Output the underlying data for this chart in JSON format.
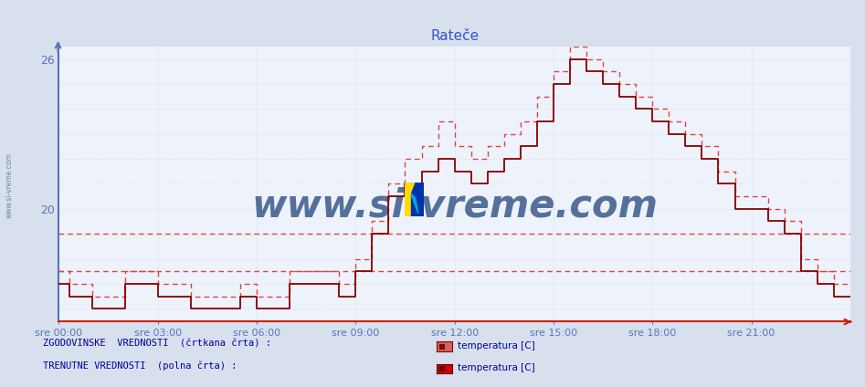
{
  "title": "Rateče",
  "title_color": "#3355cc",
  "fig_bg": "#d8e0ee",
  "plot_bg": "#eef2fa",
  "grid_color": "#c8d4e8",
  "grid_dashed_color": "#dd3333",
  "axis_color_y": "#5577bb",
  "axis_color_x": "#cc2200",
  "text_color": "#000099",
  "watermark_text": "www.si-vreme.com",
  "watermark_color": "#3a5a8a",
  "side_text": "www.si-vreme.com",
  "side_text_color": "#6688aa",
  "ylim": [
    15.5,
    26.5
  ],
  "ytick_positions": [
    20,
    26
  ],
  "ytick_labels": [
    "20",
    "26"
  ],
  "xlim_pts": [
    0,
    288
  ],
  "xtick_positions": [
    0,
    36,
    72,
    108,
    144,
    180,
    216,
    252
  ],
  "xtick_labels": [
    "sre 00:00",
    "sre 03:00",
    "sre 06:00",
    "sre 09:00",
    "sre 12:00",
    "sre 15:00",
    "sre 18:00",
    "sre 21:00"
  ],
  "hist_avg_y1": 19.0,
  "hist_avg_y2": 17.5,
  "legend_hist_text": "ZGODOVINSKE  VREDNOSTI  (črtkana črta) :",
  "legend_curr_text": "TRENUTNE VREDNOSTI  (polna črta) :",
  "legend_item_text": "temperatura [C]",
  "curr_color": "#880000",
  "hist_color": "#dd4444",
  "curr_lw": 1.3,
  "hist_lw": 1.0,
  "curr_x": [
    0,
    4,
    4,
    12,
    12,
    24,
    24,
    36,
    36,
    48,
    48,
    66,
    66,
    72,
    72,
    84,
    84,
    102,
    102,
    108,
    108,
    114,
    114,
    120,
    120,
    126,
    126,
    132,
    132,
    138,
    138,
    144,
    144,
    150,
    150,
    156,
    156,
    162,
    162,
    168,
    168,
    174,
    174,
    180,
    180,
    186,
    186,
    192,
    192,
    198,
    198,
    204,
    204,
    210,
    210,
    216,
    216,
    222,
    222,
    228,
    228,
    234,
    234,
    240,
    240,
    246,
    246,
    252,
    252,
    258,
    258,
    264,
    264,
    270,
    270,
    276,
    276,
    282,
    282,
    288
  ],
  "curr_y": [
    17.0,
    17.0,
    16.5,
    16.5,
    16.0,
    16.0,
    17.0,
    17.0,
    16.5,
    16.5,
    16.0,
    16.0,
    16.5,
    16.5,
    16.0,
    16.0,
    17.0,
    17.0,
    16.5,
    16.5,
    17.5,
    17.5,
    19.0,
    19.0,
    20.5,
    20.5,
    21.0,
    21.0,
    21.5,
    21.5,
    22.0,
    22.0,
    21.5,
    21.5,
    21.0,
    21.0,
    21.5,
    21.5,
    22.0,
    22.0,
    22.5,
    22.5,
    23.5,
    23.5,
    25.0,
    25.0,
    26.0,
    26.0,
    25.5,
    25.5,
    25.0,
    25.0,
    24.5,
    24.5,
    24.0,
    24.0,
    23.5,
    23.5,
    23.0,
    23.0,
    22.5,
    22.5,
    22.0,
    22.0,
    21.0,
    21.0,
    20.0,
    20.0,
    20.0,
    20.0,
    19.5,
    19.5,
    19.0,
    19.0,
    17.5,
    17.5,
    17.0,
    17.0,
    16.5,
    16.5
  ],
  "hist_x": [
    0,
    4,
    4,
    12,
    12,
    24,
    24,
    36,
    36,
    48,
    48,
    66,
    66,
    72,
    72,
    84,
    84,
    102,
    102,
    108,
    108,
    114,
    114,
    120,
    120,
    126,
    126,
    132,
    132,
    138,
    138,
    144,
    144,
    150,
    150,
    156,
    156,
    162,
    162,
    168,
    168,
    174,
    174,
    180,
    180,
    186,
    186,
    192,
    192,
    198,
    198,
    204,
    204,
    210,
    210,
    216,
    216,
    222,
    222,
    228,
    228,
    234,
    234,
    240,
    240,
    246,
    246,
    252,
    252,
    258,
    258,
    264,
    264,
    270,
    270,
    276,
    276,
    282,
    282,
    288
  ],
  "hist_y": [
    17.5,
    17.5,
    17.0,
    17.0,
    16.5,
    16.5,
    17.5,
    17.5,
    17.0,
    17.0,
    16.5,
    16.5,
    17.0,
    17.0,
    16.5,
    16.5,
    17.5,
    17.5,
    17.0,
    17.0,
    18.0,
    18.0,
    19.5,
    19.5,
    21.0,
    21.0,
    22.0,
    22.0,
    22.5,
    22.5,
    23.5,
    23.5,
    22.5,
    22.5,
    22.0,
    22.0,
    22.5,
    22.5,
    23.0,
    23.0,
    23.5,
    23.5,
    24.5,
    24.5,
    25.5,
    25.5,
    26.5,
    26.5,
    26.0,
    26.0,
    25.5,
    25.5,
    25.0,
    25.0,
    24.5,
    24.5,
    24.0,
    24.0,
    23.5,
    23.5,
    23.0,
    23.0,
    22.5,
    22.5,
    21.5,
    21.5,
    20.5,
    20.5,
    20.5,
    20.5,
    20.0,
    20.0,
    19.5,
    19.5,
    18.0,
    18.0,
    17.5,
    17.5,
    17.0,
    17.0
  ]
}
